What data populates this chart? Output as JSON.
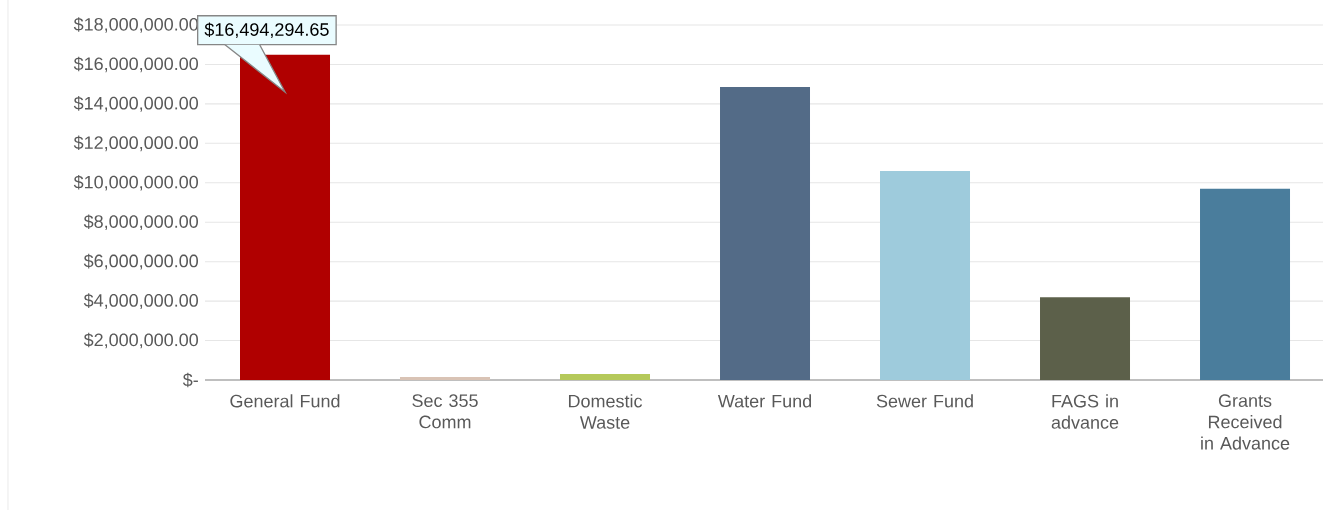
{
  "chart_data": {
    "type": "bar",
    "categories": [
      "General Fund",
      "Sec 355 Comm",
      "Domestic Waste",
      "Water Fund",
      "Sewer Fund",
      "FAGS in advance",
      "Grants Received in Advance"
    ],
    "values": [
      16494294.65,
      150000,
      300000,
      14850000,
      10600000,
      4200000,
      9700000
    ],
    "colors": [
      "#b00000",
      "#d9c3b5",
      "#b5c95a",
      "#536b87",
      "#9ecbdc",
      "#5c604a",
      "#4a7d9c"
    ],
    "value_labels": [
      "$16,494,294.65",
      null,
      null,
      null,
      null,
      null,
      null
    ],
    "ylim": [
      0,
      18000000
    ],
    "yticks": [
      {
        "value": 0,
        "label": "$-"
      },
      {
        "value": 2000000,
        "label": "$2,000,000.00"
      },
      {
        "value": 4000000,
        "label": "$4,000,000.00"
      },
      {
        "value": 6000000,
        "label": "$6,000,000.00"
      },
      {
        "value": 8000000,
        "label": "$8,000,000.00"
      },
      {
        "value": 10000000,
        "label": "$10,000,000.00"
      },
      {
        "value": 12000000,
        "label": "$12,000,000.00"
      },
      {
        "value": 14000000,
        "label": "$14,000,000.00"
      },
      {
        "value": 16000000,
        "label": "$16,000,000.00"
      },
      {
        "value": 18000000,
        "label": "$18,000,000.00"
      }
    ],
    "grid": "y"
  }
}
